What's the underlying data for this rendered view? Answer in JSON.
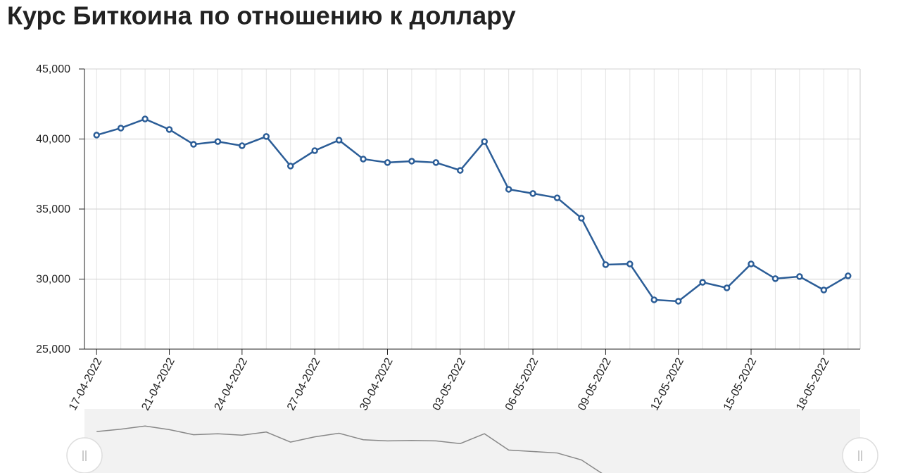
{
  "chart_data": {
    "type": "line",
    "title": "Курс Биткоина по отношению к доллару",
    "categories": [
      "17-04-2022",
      null,
      null,
      "21-04-2022",
      null,
      null,
      "24-04-2022",
      null,
      null,
      "27-04-2022",
      null,
      null,
      "30-04-2022",
      null,
      null,
      "03-05-2022",
      null,
      null,
      "06-05-2022",
      null,
      null,
      "09-05-2022",
      null,
      null,
      "12-05-2022",
      null,
      null,
      "15-05-2022",
      null,
      null,
      "18-05-2022",
      null
    ],
    "series": [
      {
        "color": "#2b5d97",
        "values": [
          40280,
          40780,
          41430,
          40680,
          39620,
          39820,
          39520,
          40180,
          38070,
          39170,
          39920,
          38570,
          38320,
          38420,
          38320,
          37760,
          39820,
          36410,
          36110,
          35800,
          34350,
          31030,
          31080,
          28520,
          28420,
          29770,
          29370,
          31080,
          30030,
          30180,
          29220,
          30230
        ]
      }
    ],
    "ylim": [
      25000,
      45000
    ],
    "yticks": [
      {
        "value": 25000,
        "label": "25,000"
      },
      {
        "value": 30000,
        "label": "30,000"
      },
      {
        "value": 35000,
        "label": "35,000"
      },
      {
        "value": 40000,
        "label": "40,000"
      },
      {
        "value": 45000,
        "label": "45,000"
      }
    ],
    "grid": true
  }
}
